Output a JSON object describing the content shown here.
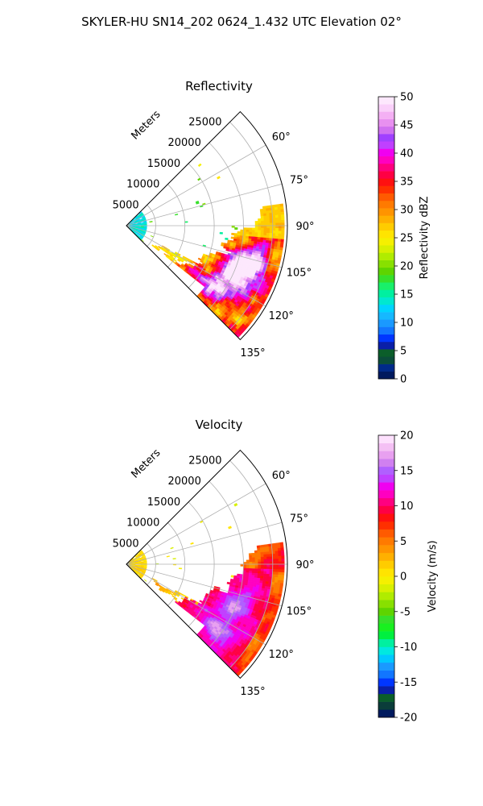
{
  "figure": {
    "title": "SKYLER-HU  SN14_202  0624_1.432 UTC Elevation 02°"
  },
  "chart_data": [
    {
      "type": "heatmap",
      "title": "Reflectivity",
      "radial_axis_label": "Meters",
      "radial_ticks": [
        5000,
        10000,
        15000,
        20000,
        25000
      ],
      "radial_max": 27500,
      "azimuth_ticks": [
        "60°",
        "75°",
        "90°",
        "105°",
        "120°",
        "135°"
      ],
      "azimuth_range_deg": [
        45,
        135
      ],
      "colorbar": {
        "label": "Reflectivity dBZ",
        "min": 0,
        "max": 50,
        "ticks": [
          0,
          5,
          10,
          15,
          20,
          25,
          30,
          35,
          40,
          45,
          50
        ]
      },
      "echoes": [
        {
          "az": 106,
          "range": 22000,
          "value": 45
        },
        {
          "az": 112,
          "range": 20000,
          "value": 40
        },
        {
          "az": 118,
          "range": 21000,
          "value": 38
        },
        {
          "az": 125,
          "range": 19000,
          "value": 40
        },
        {
          "az": 95,
          "range": 24000,
          "value": 28
        },
        {
          "az": 88,
          "range": 23000,
          "value": 20
        }
      ],
      "grid": true
    },
    {
      "type": "heatmap",
      "title": "Velocity",
      "radial_axis_label": "Meters",
      "radial_ticks": [
        5000,
        10000,
        15000,
        20000,
        25000
      ],
      "radial_max": 27500,
      "azimuth_ticks": [
        "60°",
        "75°",
        "90°",
        "105°",
        "120°",
        "135°"
      ],
      "azimuth_range_deg": [
        45,
        135
      ],
      "colorbar": {
        "label": "Velocity (m/s)",
        "min": -20,
        "max": 20,
        "ticks": [
          -20,
          -15,
          -10,
          -5,
          0,
          5,
          10,
          15,
          20
        ]
      },
      "echoes": [
        {
          "az": 100,
          "range": 22000,
          "value": 10
        },
        {
          "az": 112,
          "range": 20000,
          "value": 14
        },
        {
          "az": 125,
          "range": 19000,
          "value": 15
        },
        {
          "az": 90,
          "range": 24000,
          "value": 8
        }
      ],
      "grid": true
    }
  ],
  "colormaps": {
    "reflectivity": [
      "#001a5e",
      "#002a8a",
      "#0b4d3a",
      "#0b5e2a",
      "#0a1fa8",
      "#0036ff",
      "#1276ff",
      "#1a99ff",
      "#16b8ff",
      "#00d4ff",
      "#00e8d0",
      "#00f0a0",
      "#19f06a",
      "#36e02a",
      "#5ed400",
      "#88e000",
      "#b0ec00",
      "#d8f000",
      "#f5f000",
      "#ffe400",
      "#ffcc00",
      "#ffb000",
      "#ff9400",
      "#ff7a00",
      "#ff5a00",
      "#ff3000",
      "#ff1010",
      "#ff0044",
      "#ff0080",
      "#ff00c0",
      "#f000f0",
      "#c040ff",
      "#a040ff",
      "#d070f0",
      "#e890f0",
      "#f4b0f4",
      "#fad0fa",
      "#fde8fd"
    ],
    "velocity": [
      "#001a5e",
      "#0b3d3a",
      "#0b5e2a",
      "#0a1fa8",
      "#0036ff",
      "#1276ff",
      "#1a99ff",
      "#00c8ff",
      "#00e8e0",
      "#00f0a0",
      "#00f040",
      "#19f020",
      "#36e02a",
      "#5ed400",
      "#88e000",
      "#b0ec00",
      "#d8f000",
      "#f5f000",
      "#ffe400",
      "#ffcc00",
      "#ffb000",
      "#ff9400",
      "#ff7a00",
      "#ff5a00",
      "#ff3000",
      "#ff1010",
      "#ff0044",
      "#ff0080",
      "#ff00c0",
      "#f000f0",
      "#c040ff",
      "#b060ff",
      "#d080f0",
      "#e8a0f0",
      "#f4c0f4",
      "#fde0fd"
    ]
  }
}
